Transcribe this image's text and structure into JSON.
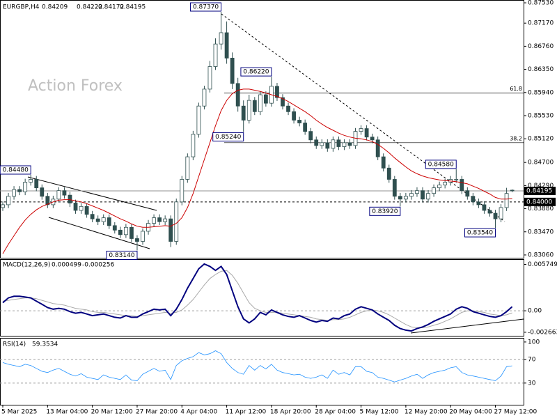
{
  "chart_data": {
    "type": "candlestick",
    "symbol": "EURGBP,H4",
    "watermark": "Action Forex",
    "color": "#2f4f4f",
    "categories": [
      "5 Mar 2025",
      null,
      null,
      null,
      null,
      null,
      null,
      null,
      "13 Mar 04:00",
      null,
      null,
      null,
      null,
      null,
      null,
      null,
      "20 Mar 12:00",
      null,
      null,
      null,
      null,
      null,
      null,
      null,
      "27 Mar 20:00",
      null,
      null,
      null,
      null,
      null,
      null,
      null,
      "4 Apr 04:00",
      null,
      null,
      null,
      null,
      null,
      null,
      null,
      "11 Apr 12:00",
      null,
      null,
      null,
      null,
      null,
      null,
      null,
      "18 Apr 20:00",
      null,
      null,
      null,
      null,
      null,
      null,
      null,
      "28 Apr 04:00",
      null,
      null,
      null,
      null,
      null,
      null,
      null,
      "5 May 12:00",
      null,
      null,
      null,
      null,
      null,
      null,
      null,
      "12 May 20:00",
      null,
      null,
      null,
      null,
      null,
      null,
      null,
      "20 May 04:00",
      null,
      null,
      null,
      null,
      null,
      null,
      null,
      "27 May 12:00",
      null,
      null,
      null
    ],
    "candles": [
      [
        0.839,
        0.8401,
        0.8384,
        0.8395
      ],
      [
        0.8395,
        0.8416,
        0.8389,
        0.841
      ],
      [
        0.841,
        0.8428,
        0.8404,
        0.8422
      ],
      [
        0.8422,
        0.8428,
        0.8412,
        0.8418
      ],
      [
        0.8418,
        0.8441,
        0.8412,
        0.8435
      ],
      [
        0.8435,
        0.8448,
        0.8429,
        0.844
      ],
      [
        0.844,
        0.8446,
        0.8419,
        0.8425
      ],
      [
        0.8425,
        0.8431,
        0.8404,
        0.841
      ],
      [
        0.841,
        0.8416,
        0.8389,
        0.8395
      ],
      [
        0.8395,
        0.8411,
        0.8389,
        0.8405
      ],
      [
        0.8405,
        0.8426,
        0.8399,
        0.842
      ],
      [
        0.842,
        0.8426,
        0.8406,
        0.8412
      ],
      [
        0.8412,
        0.8418,
        0.8391,
        0.8398
      ],
      [
        0.8398,
        0.8404,
        0.8379,
        0.8385
      ],
      [
        0.8385,
        0.8398,
        0.8379,
        0.8392
      ],
      [
        0.8392,
        0.8398,
        0.8372,
        0.8378
      ],
      [
        0.8378,
        0.8384,
        0.8364,
        0.837
      ],
      [
        0.837,
        0.8376,
        0.8359,
        0.8365
      ],
      [
        0.8365,
        0.8378,
        0.8359,
        0.8372
      ],
      [
        0.8372,
        0.8378,
        0.8352,
        0.8358
      ],
      [
        0.8358,
        0.8364,
        0.8344,
        0.835
      ],
      [
        0.835,
        0.8356,
        0.8336,
        0.8342
      ],
      [
        0.8342,
        0.8361,
        0.8336,
        0.8355
      ],
      [
        0.8355,
        0.8361,
        0.8329,
        0.8335
      ],
      [
        0.8335,
        0.8341,
        0.8314,
        0.833
      ],
      [
        0.833,
        0.8353,
        0.8324,
        0.8348
      ],
      [
        0.8348,
        0.8368,
        0.8342,
        0.8362
      ],
      [
        0.8362,
        0.8378,
        0.8356,
        0.8372
      ],
      [
        0.8372,
        0.8378,
        0.8359,
        0.8365
      ],
      [
        0.8365,
        0.8376,
        0.8359,
        0.837
      ],
      [
        0.837,
        0.8376,
        0.832,
        0.833
      ],
      [
        0.833,
        0.8406,
        0.8324,
        0.84
      ],
      [
        0.84,
        0.8446,
        0.8394,
        0.844
      ],
      [
        0.844,
        0.8486,
        0.8434,
        0.848
      ],
      [
        0.848,
        0.8526,
        0.8474,
        0.852
      ],
      [
        0.852,
        0.8576,
        0.8514,
        0.857
      ],
      [
        0.857,
        0.8606,
        0.8564,
        0.86
      ],
      [
        0.86,
        0.865,
        0.8594,
        0.864
      ],
      [
        0.864,
        0.869,
        0.8634,
        0.868
      ],
      [
        0.868,
        0.8737,
        0.867,
        0.87
      ],
      [
        0.87,
        0.872,
        0.8645,
        0.8655
      ],
      [
        0.8655,
        0.8665,
        0.86,
        0.861
      ],
      [
        0.861,
        0.862,
        0.856,
        0.857
      ],
      [
        0.857,
        0.858,
        0.8524,
        0.8545
      ],
      [
        0.8545,
        0.859,
        0.8539,
        0.858
      ],
      [
        0.858,
        0.8586,
        0.8554,
        0.856
      ],
      [
        0.856,
        0.8596,
        0.8554,
        0.859
      ],
      [
        0.859,
        0.8596,
        0.8569,
        0.8575
      ],
      [
        0.8575,
        0.8622,
        0.8569,
        0.8605
      ],
      [
        0.8605,
        0.8611,
        0.8579,
        0.8585
      ],
      [
        0.8585,
        0.8591,
        0.8564,
        0.857
      ],
      [
        0.857,
        0.8576,
        0.8554,
        0.856
      ],
      [
        0.856,
        0.8566,
        0.8539,
        0.8545
      ],
      [
        0.8545,
        0.8551,
        0.8534,
        0.854
      ],
      [
        0.854,
        0.8546,
        0.8519,
        0.8525
      ],
      [
        0.8525,
        0.8531,
        0.8504,
        0.851
      ],
      [
        0.851,
        0.8516,
        0.8494,
        0.85
      ],
      [
        0.85,
        0.8511,
        0.8494,
        0.8505
      ],
      [
        0.8505,
        0.8511,
        0.8489,
        0.8495
      ],
      [
        0.8495,
        0.8516,
        0.8489,
        0.851
      ],
      [
        0.851,
        0.8516,
        0.8492,
        0.8498
      ],
      [
        0.8498,
        0.8511,
        0.8492,
        0.8505
      ],
      [
        0.8505,
        0.8511,
        0.8494,
        0.85
      ],
      [
        0.85,
        0.8531,
        0.8494,
        0.8525
      ],
      [
        0.8525,
        0.8536,
        0.8519,
        0.853
      ],
      [
        0.853,
        0.8536,
        0.8509,
        0.8515
      ],
      [
        0.8515,
        0.8521,
        0.8504,
        0.851
      ],
      [
        0.851,
        0.8516,
        0.8474,
        0.848
      ],
      [
        0.848,
        0.8486,
        0.8454,
        0.846
      ],
      [
        0.846,
        0.8466,
        0.8434,
        0.844
      ],
      [
        0.844,
        0.8446,
        0.8404,
        0.841
      ],
      [
        0.841,
        0.8416,
        0.8392,
        0.8405
      ],
      [
        0.8405,
        0.8416,
        0.8399,
        0.841
      ],
      [
        0.841,
        0.8421,
        0.8404,
        0.8415
      ],
      [
        0.8415,
        0.8426,
        0.8409,
        0.842
      ],
      [
        0.842,
        0.8426,
        0.8399,
        0.8405
      ],
      [
        0.8405,
        0.8421,
        0.8399,
        0.8415
      ],
      [
        0.8415,
        0.8431,
        0.8409,
        0.8425
      ],
      [
        0.8425,
        0.8436,
        0.8419,
        0.843
      ],
      [
        0.843,
        0.8441,
        0.8424,
        0.8435
      ],
      [
        0.8435,
        0.8446,
        0.8429,
        0.844
      ],
      [
        0.844,
        0.8458,
        0.8434,
        0.844
      ],
      [
        0.844,
        0.8446,
        0.8414,
        0.842
      ],
      [
        0.842,
        0.8426,
        0.8404,
        0.841
      ],
      [
        0.841,
        0.8416,
        0.8394,
        0.84
      ],
      [
        0.84,
        0.8406,
        0.8389,
        0.8395
      ],
      [
        0.8395,
        0.8401,
        0.8379,
        0.8385
      ],
      [
        0.8385,
        0.8391,
        0.8374,
        0.838
      ],
      [
        0.838,
        0.8386,
        0.8354,
        0.837
      ],
      [
        0.837,
        0.8396,
        0.8364,
        0.839
      ],
      [
        0.839,
        0.8425,
        0.8384,
        0.8415
      ],
      [
        0.84209,
        0.84222,
        0.84172,
        0.84195
      ]
    ],
    "overlays": [
      {
        "color": "#cc0000",
        "values": [
          0.8308,
          0.8325,
          0.834,
          0.8355,
          0.8368,
          0.8378,
          0.8386,
          0.8392,
          0.8396,
          0.84,
          0.8403,
          0.8404,
          0.8404,
          0.8402,
          0.84,
          0.8397,
          0.8393,
          0.8389,
          0.8385,
          0.838,
          0.8375,
          0.837,
          0.8366,
          0.8361,
          0.8357,
          0.8355,
          0.8355,
          0.8356,
          0.8357,
          0.8358,
          0.8357,
          0.8362,
          0.8372,
          0.839,
          0.8415,
          0.8445,
          0.8475,
          0.8505,
          0.8535,
          0.8562,
          0.858,
          0.8592,
          0.8598,
          0.86,
          0.86,
          0.8598,
          0.8596,
          0.8593,
          0.859,
          0.8587,
          0.8583,
          0.8578,
          0.8572,
          0.8566,
          0.856,
          0.8553,
          0.8545,
          0.8538,
          0.8532,
          0.8527,
          0.8522,
          0.8518,
          0.8515,
          0.8513,
          0.8512,
          0.851,
          0.8507,
          0.8502,
          0.8495,
          0.8487,
          0.8478,
          0.847,
          0.8462,
          0.8455,
          0.845,
          0.8446,
          0.8443,
          0.8441,
          0.8439,
          0.8438,
          0.8437,
          0.8436,
          0.8434,
          0.8432,
          0.8428,
          0.8424,
          0.8419,
          0.8414,
          0.8408,
          0.8405,
          0.8405,
          0.8406
        ]
      }
    ],
    "ylim": [
      0.8301,
      0.8758
    ],
    "yticks": [
      {
        "value": 0.8753,
        "label": "0.87530"
      },
      {
        "value": 0.8717,
        "label": "0.87170"
      },
      {
        "value": 0.8676,
        "label": "0.86760"
      },
      {
        "value": 0.8635,
        "label": "0.86350"
      },
      {
        "value": 0.8594,
        "label": "0.85940"
      },
      {
        "value": 0.8553,
        "label": "0.85530"
      },
      {
        "value": 0.8512,
        "label": "0.85120"
      },
      {
        "value": 0.847,
        "label": "0.84700"
      },
      {
        "value": 0.8429,
        "label": "0.84290"
      },
      {
        "value": 0.8388,
        "label": "0.83880"
      },
      {
        "value": 0.8347,
        "label": "0.83470"
      },
      {
        "value": 0.8306,
        "label": "0.83060"
      }
    ],
    "swing_labels": [
      {
        "value": 0.8448,
        "label": "0.84480"
      },
      {
        "value": 0.8314,
        "label": "0.83140"
      },
      {
        "value": 0.8737,
        "label": "0.87370"
      },
      {
        "value": 0.8524,
        "label": "0.85240"
      },
      {
        "value": 0.8622,
        "label": "0.86220"
      },
      {
        "value": 0.8458,
        "label": "0.84580"
      },
      {
        "value": 0.8392,
        "label": "0.83920"
      },
      {
        "value": 0.8354,
        "label": "0.83540"
      }
    ],
    "fib_levels": [
      {
        "ratio": 61.8,
        "price": 0.8593
      },
      {
        "ratio": 38.2,
        "price": 0.8505
      }
    ],
    "levels": [
      {
        "value": 0.84,
        "label": "0.84000"
      }
    ],
    "macd": {
      "title": "MACD(12,26,9)",
      "ylim": [
        -0.0031,
        0.0064
      ],
      "yticks": [
        0.005749,
        {
          "value": 0,
          "label": "0.00"
        },
        -0.002663
      ],
      "series": [
        {
          "color": "#00007f",
          "values": [
            0.001,
            0.0016,
            0.0018,
            0.0018,
            0.0017,
            0.0016,
            0.0012,
            0.0008,
            0.0004,
            0.0002,
            0.0003,
            0.0002,
            -0.0001,
            -0.0003,
            -0.0002,
            -0.0004,
            -0.0006,
            -0.0005,
            -0.0004,
            -0.0006,
            -0.0008,
            -0.0009,
            -0.0006,
            -0.0008,
            -0.0008,
            -0.0004,
            -0.0001,
            0.0002,
            0.0001,
            0.0002,
            -0.0006,
            0.0002,
            0.0014,
            0.0028,
            0.004,
            0.0052,
            0.0058,
            0.0055,
            0.005,
            0.0055,
            0.0045,
            0.0025,
            0.0005,
            -0.001,
            -0.0015,
            -0.001,
            -0.0002,
            -0.0005,
            0.0001,
            -0.0002,
            -0.0005,
            -0.0007,
            -0.0008,
            -0.0006,
            -0.0009,
            -0.0012,
            -0.0014,
            -0.0012,
            -0.0013,
            -0.0009,
            -0.001,
            -0.0006,
            -0.0004,
            0.0002,
            0.0005,
            0.0003,
            0.0001,
            -0.0004,
            -0.0008,
            -0.0012,
            -0.0018,
            -0.0022,
            -0.0024,
            -0.0025,
            -0.0022,
            -0.002,
            -0.0017,
            -0.0013,
            -0.001,
            -0.0007,
            -0.0004,
            0.0002,
            0.0005,
            0.0003,
            -0.0001,
            -0.0003,
            -0.0005,
            -0.0007,
            -0.0008,
            -0.0006,
            -0.0001,
            0.000499
          ]
        },
        {
          "color": "#a9a9a9",
          "values": [
            0.0012,
            0.0013,
            0.0014,
            0.0015,
            0.0016,
            0.0016,
            0.0015,
            0.0013,
            0.0011,
            0.0009,
            0.0008,
            0.0007,
            0.0005,
            0.0003,
            0.0002,
            0.0001,
            -0.0001,
            -0.0002,
            -0.0002,
            -0.0003,
            -0.0004,
            -0.0005,
            -0.0006,
            -0.0006,
            -0.0007,
            -0.0006,
            -0.0005,
            -0.0004,
            -0.0003,
            -0.0002,
            -0.0003,
            -0.0002,
            0.0001,
            0.0007,
            0.0014,
            0.0023,
            0.0032,
            0.004,
            0.0045,
            0.0049,
            0.005,
            0.0044,
            0.0034,
            0.0022,
            0.001,
            0.0003,
            0.0,
            -0.0002,
            -0.0002,
            -0.0002,
            -0.0003,
            -0.0004,
            -0.0005,
            -0.0006,
            -0.0007,
            -0.0008,
            -0.001,
            -0.0011,
            -0.0012,
            -0.0011,
            -0.0011,
            -0.001,
            -0.0008,
            -0.0005,
            -0.0002,
            0.0,
            0.0001,
            0.0,
            -0.0002,
            -0.0005,
            -0.0009,
            -0.0013,
            -0.0017,
            -0.002,
            -0.0021,
            -0.0021,
            -0.002,
            -0.0018,
            -0.0016,
            -0.0013,
            -0.001,
            -0.0006,
            -0.0002,
            0.0,
            0.0,
            -0.0001,
            -0.0002,
            -0.0004,
            -0.0005,
            -0.0006,
            -0.0005,
            -0.000256
          ]
        }
      ]
    },
    "rsi": {
      "title": "RSI(14)",
      "ylim": [
        -7,
        107
      ],
      "yticks": [
        100,
        70,
        30
      ],
      "color": "#1e90ff",
      "values": [
        65,
        62,
        60,
        58,
        62,
        60,
        55,
        50,
        48,
        52,
        55,
        50,
        45,
        42,
        46,
        40,
        38,
        36,
        44,
        40,
        38,
        36,
        44,
        35,
        34,
        45,
        50,
        55,
        50,
        52,
        36,
        60,
        68,
        72,
        75,
        82,
        78,
        80,
        85,
        80,
        65,
        55,
        48,
        45,
        60,
        52,
        60,
        54,
        62,
        52,
        48,
        46,
        44,
        45,
        40,
        38,
        40,
        44,
        38,
        52,
        45,
        48,
        44,
        58,
        58,
        50,
        48,
        40,
        38,
        35,
        32,
        35,
        38,
        42,
        45,
        38,
        44,
        48,
        50,
        52,
        56,
        58,
        48,
        44,
        42,
        40,
        38,
        36,
        34,
        42,
        58,
        59.3534
      ]
    }
  }
}
